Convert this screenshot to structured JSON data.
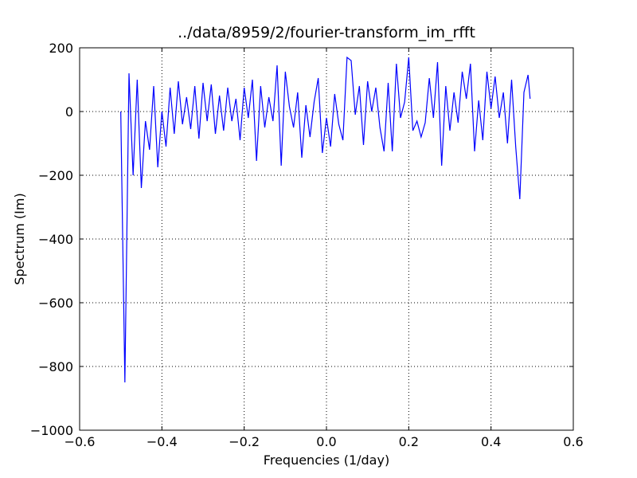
{
  "chart_data": {
    "type": "line",
    "title": "../data/8959/2/fourier-transform_im_rfft",
    "xlabel": "Frequencies (1/day)",
    "ylabel": "Spectrum (Im)",
    "color": "#0000ff",
    "grid": true,
    "x": [
      -0.5,
      -0.49,
      -0.48,
      -0.47,
      -0.46,
      -0.45,
      -0.44,
      -0.43,
      -0.42,
      -0.41,
      -0.4,
      -0.39,
      -0.38,
      -0.37,
      -0.36,
      -0.35,
      -0.34,
      -0.33,
      -0.32,
      -0.31,
      -0.3,
      -0.29,
      -0.28,
      -0.27,
      -0.26,
      -0.25,
      -0.24,
      -0.23,
      -0.22,
      -0.21,
      -0.2,
      -0.19,
      -0.18,
      -0.17,
      -0.16,
      -0.15,
      -0.14,
      -0.13,
      -0.12,
      -0.11,
      -0.1,
      -0.09,
      -0.08,
      -0.07,
      -0.06,
      -0.05,
      -0.04,
      -0.03,
      -0.02,
      -0.01,
      0,
      0.01,
      0.02,
      0.03,
      0.04,
      0.05,
      0.06,
      0.07,
      0.08,
      0.09,
      0.1,
      0.11,
      0.12,
      0.13,
      0.14,
      0.15,
      0.16,
      0.17,
      0.18,
      0.19,
      0.2,
      0.21,
      0.22,
      0.23,
      0.24,
      0.25,
      0.26,
      0.27,
      0.28,
      0.29,
      0.3,
      0.31,
      0.32,
      0.33,
      0.34,
      0.35,
      0.36,
      0.37,
      0.38,
      0.39,
      0.4,
      0.41,
      0.42,
      0.43,
      0.44,
      0.45,
      0.46,
      0.47,
      0.48,
      0.49,
      0.495
    ],
    "values": [
      0,
      -850,
      120,
      -200,
      100,
      -240,
      -30,
      -120,
      80,
      -175,
      0,
      -110,
      75,
      -70,
      95,
      -40,
      45,
      -55,
      80,
      -85,
      90,
      -30,
      85,
      -70,
      50,
      -60,
      75,
      -30,
      40,
      -90,
      75,
      -20,
      100,
      -155,
      80,
      -50,
      45,
      -30,
      145,
      -170,
      125,
      15,
      -50,
      60,
      -145,
      20,
      -80,
      30,
      105,
      -130,
      -20,
      -110,
      55,
      -40,
      -90,
      170,
      160,
      -10,
      80,
      -105,
      95,
      0,
      75,
      -50,
      -125,
      90,
      -125,
      150,
      -20,
      30,
      170,
      -60,
      -30,
      -80,
      -35,
      105,
      -20,
      155,
      -170,
      80,
      -60,
      60,
      -35,
      125,
      40,
      150,
      -125,
      35,
      -90,
      125,
      10,
      110,
      -20,
      60,
      -100,
      100,
      -110,
      -275,
      60,
      115,
      40
    ],
    "xlim": [
      -0.6,
      0.6
    ],
    "ylim": [
      -1000,
      200
    ],
    "xticks": [
      {
        "value": -0.6,
        "label": "−0.6"
      },
      {
        "value": -0.4,
        "label": "−0.4"
      },
      {
        "value": -0.2,
        "label": "−0.2"
      },
      {
        "value": 0,
        "label": "0.0"
      },
      {
        "value": 0.2,
        "label": "0.2"
      },
      {
        "value": 0.4,
        "label": "0.4"
      },
      {
        "value": 0.6,
        "label": "0.6"
      }
    ],
    "yticks": [
      {
        "value": -1000,
        "label": "−1000"
      },
      {
        "value": -800,
        "label": "−800"
      },
      {
        "value": -600,
        "label": "−600"
      },
      {
        "value": -400,
        "label": "−400"
      },
      {
        "value": -200,
        "label": "−200"
      },
      0,
      200
    ]
  }
}
